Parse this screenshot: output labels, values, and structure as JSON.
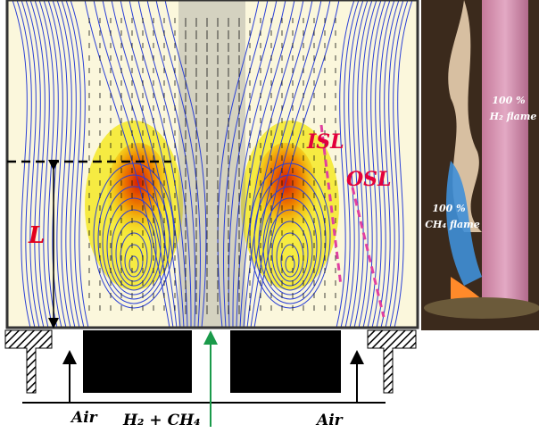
{
  "figure": {
    "flow_labels": {
      "length": "L",
      "inner_shear_layer": "ISL",
      "outer_shear_layer": "OSL"
    },
    "photo_labels": {
      "h2_percent": "100 %",
      "h2_flame": "H₂ flame",
      "ch4_percent": "100 %",
      "ch4_flame": "CH₄ flame"
    },
    "inlet_labels": {
      "left_air": "Air",
      "fuel": "H₂ + CH₄",
      "right_air": "Air"
    }
  }
}
